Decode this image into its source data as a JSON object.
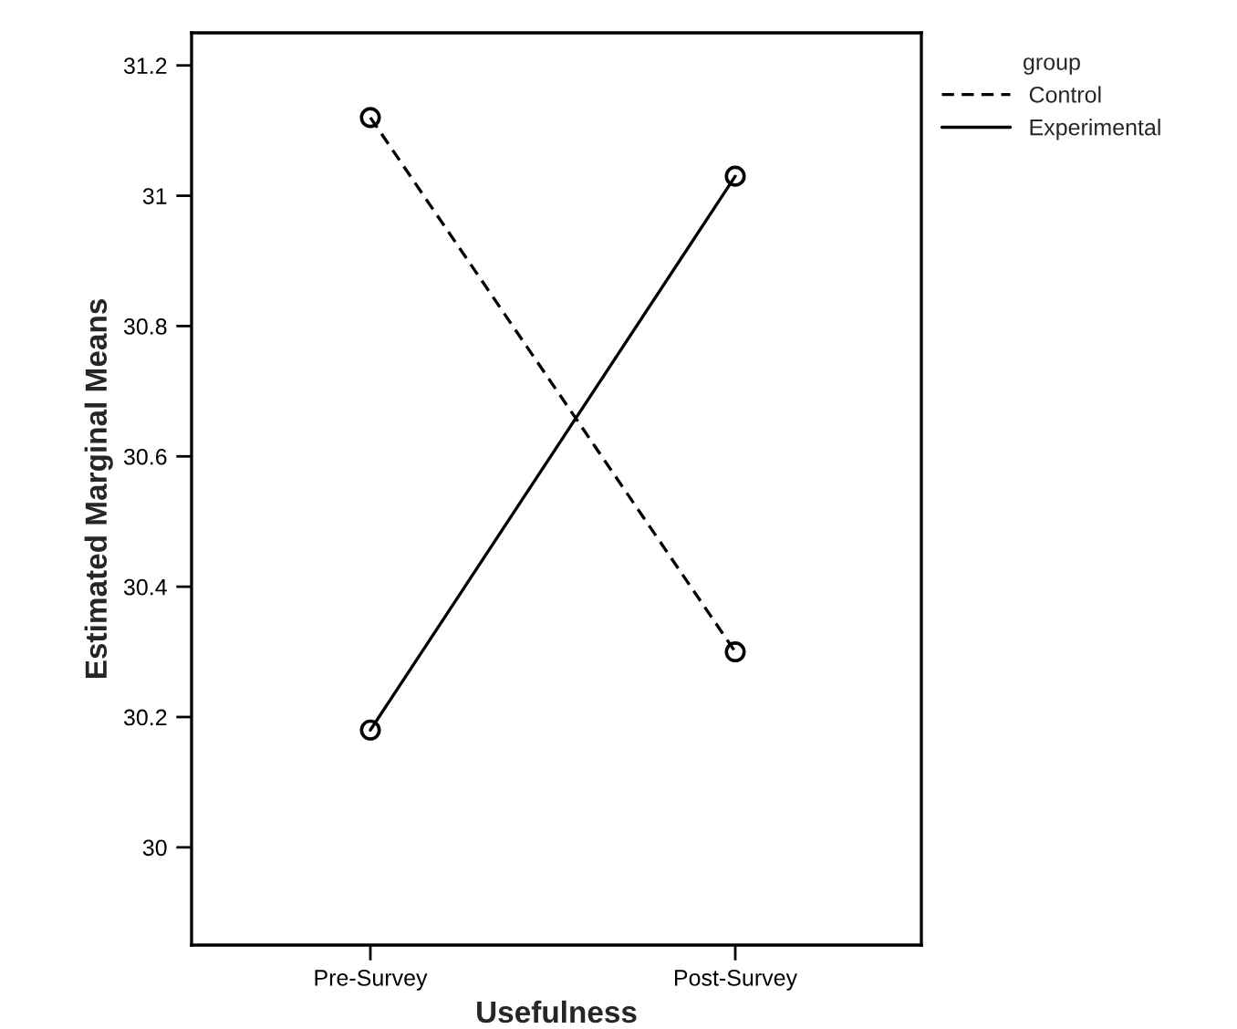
{
  "chart_data": {
    "type": "line",
    "xlabel": "Usefulness",
    "ylabel": "Estimated Marginal Means",
    "legend_title": "group",
    "categories": [
      "Pre-Survey",
      "Post-Survey"
    ],
    "series": [
      {
        "name": "Control",
        "color": "#000000",
        "values": [
          31.12,
          30.3
        ],
        "line_style": "dashed"
      },
      {
        "name": "Experimental",
        "color": "#000000",
        "values": [
          30.18,
          31.03
        ],
        "line_style": "solid"
      }
    ],
    "ylim": [
      29.85,
      31.25
    ],
    "yticks": [
      30,
      {
        "value": 30.2,
        "label": "30.2"
      },
      {
        "value": 30.4,
        "label": "30.4"
      },
      {
        "value": 30.6,
        "label": "30.6"
      },
      {
        "value": 30.8,
        "label": "30.8"
      },
      31,
      {
        "value": 31.2,
        "label": "31.2"
      }
    ],
    "marker": "circle",
    "grid": false,
    "legend": "top right"
  }
}
